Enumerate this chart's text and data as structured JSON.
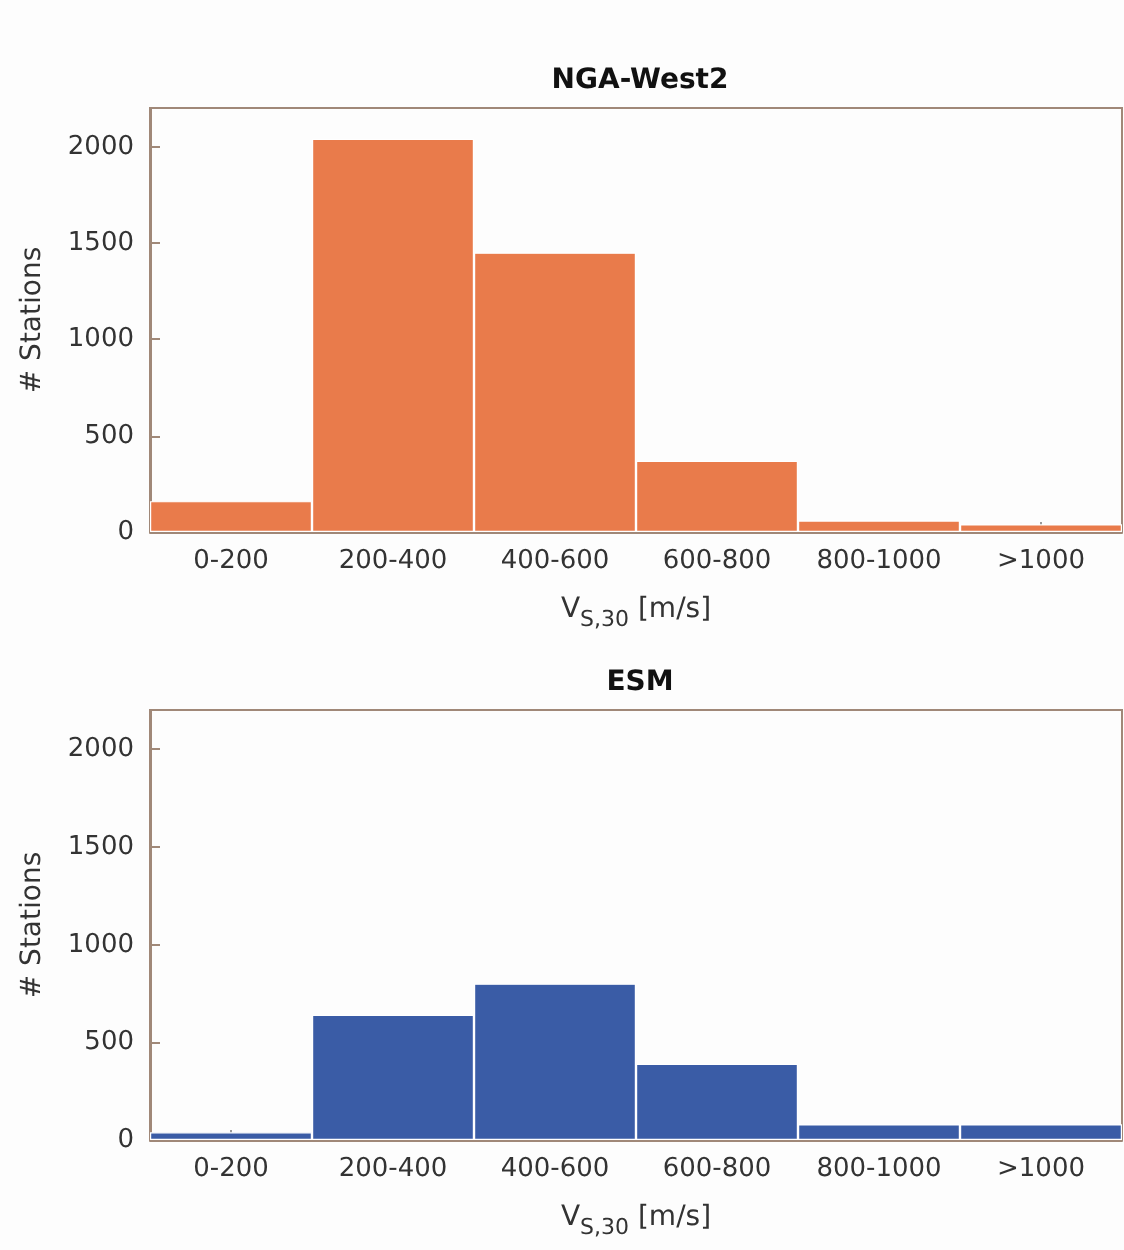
{
  "chart_data": [
    {
      "type": "bar",
      "title": "NGA-West2",
      "xlabel": "V$_{S,30}$ [m/s]",
      "ylabel": "# Stations",
      "categories": [
        "0-200",
        "200-400",
        "400-600",
        "600-800",
        "800-1000",
        ">1000"
      ],
      "values": [
        160,
        2040,
        1450,
        370,
        60,
        40
      ],
      "color": "#e97b4b",
      "ylim": [
        0,
        2200
      ],
      "yticks": [
        0,
        500,
        1000,
        1500,
        2000
      ],
      "grid": false
    },
    {
      "type": "bar",
      "title": "ESM",
      "xlabel": "V$_{S,30}$ [m/s]",
      "ylabel": "# Stations",
      "categories": [
        "0-200",
        "200-400",
        "400-600",
        "600-800",
        "800-1000",
        ">1000"
      ],
      "values": [
        40,
        640,
        800,
        390,
        80,
        80
      ],
      "color": "#3a5ca6",
      "ylim": [
        0,
        2200
      ],
      "yticks": [
        0,
        500,
        1000,
        1500,
        2000
      ],
      "grid": false
    }
  ]
}
